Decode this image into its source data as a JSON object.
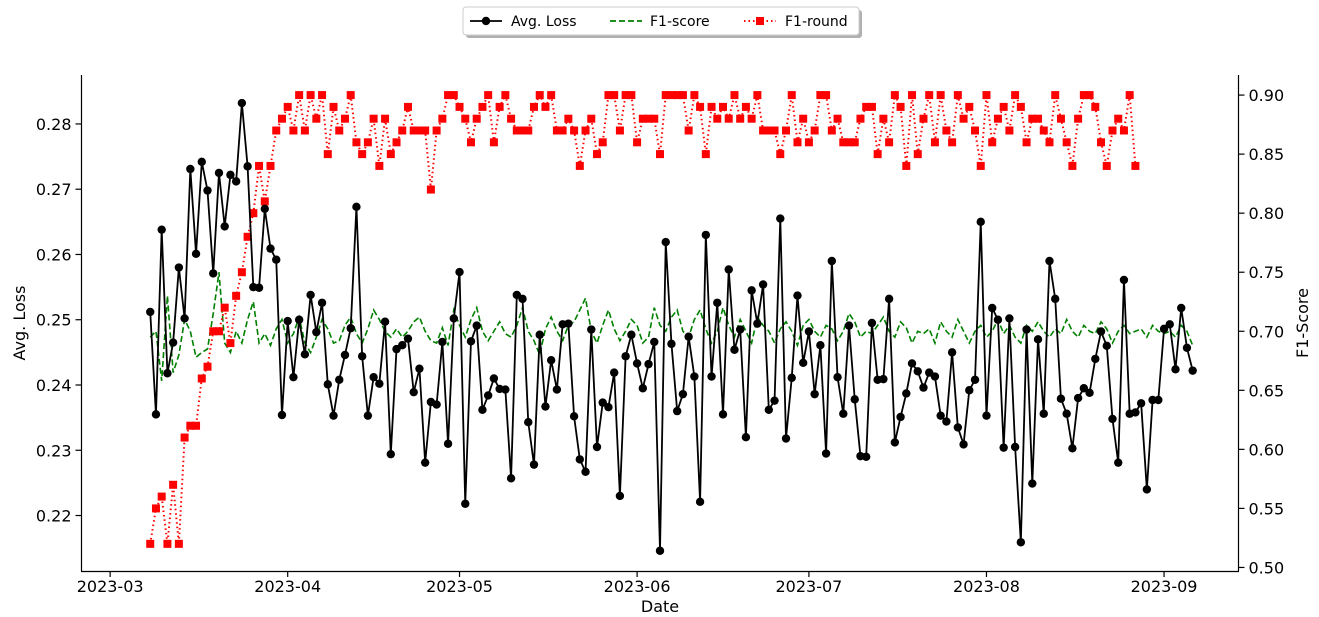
{
  "chart_data": {
    "type": "line",
    "xlabel": "Date",
    "ylabel_left": "Avg. Loss",
    "ylabel_right": "F1-Score",
    "x_tick_labels": [
      "2023-03",
      "2023-04",
      "2023-05",
      "2023-06",
      "2023-07",
      "2023-08",
      "2023-09"
    ],
    "x_range": [
      "2023-02-24",
      "2023-09-14"
    ],
    "x_start": "2023-03-08",
    "x_step_days": 1,
    "y_left_ticks": [
      0.22,
      0.23,
      0.24,
      0.25,
      0.26,
      0.27,
      0.28
    ],
    "y_left_range": [
      0.2115,
      0.2875
    ],
    "y_right_ticks": [
      0.5,
      0.55,
      0.6,
      0.65,
      0.7,
      0.75,
      0.8,
      0.85,
      0.9
    ],
    "y_right_range": [
      0.497,
      0.917
    ],
    "grid": false,
    "legend_placement": "top-center, above plot",
    "legend": [
      "Avg. Loss",
      "F1-score",
      "F1-round"
    ],
    "series": [
      {
        "name": "Avg. Loss",
        "axis": "left",
        "color": "#000000",
        "style": "solid line with circle markers",
        "values": [
          0.2512,
          0.2355,
          0.2638,
          0.2418,
          0.2465,
          0.258,
          0.2502,
          0.2731,
          0.2601,
          0.2742,
          0.2698,
          0.2571,
          0.2725,
          0.2643,
          0.2722,
          0.2712,
          0.2832,
          0.2735,
          0.255,
          0.2549,
          0.267,
          0.2609,
          0.2592,
          0.2354,
          0.2498,
          0.2412,
          0.25,
          0.2447,
          0.2538,
          0.2481,
          0.2526,
          0.2401,
          0.2353,
          0.2408,
          0.2446,
          0.2487,
          0.2673,
          0.2444,
          0.2353,
          0.2412,
          0.2402,
          0.2497,
          0.2294,
          0.2455,
          0.2461,
          0.2471,
          0.2389,
          0.2425,
          0.2281,
          0.2374,
          0.237,
          0.2466,
          0.231,
          0.2502,
          0.2573,
          0.2218,
          0.2467,
          0.2491,
          0.2362,
          0.2384,
          0.241,
          0.2394,
          0.2393,
          0.2257,
          0.2538,
          0.2532,
          0.2343,
          0.2278,
          0.2477,
          0.2367,
          0.2438,
          0.2393,
          0.2493,
          0.2494,
          0.2352,
          0.2286,
          0.2267,
          0.2485,
          0.2305,
          0.2373,
          0.2366,
          0.2419,
          0.223,
          0.2444,
          0.2477,
          0.2433,
          0.2395,
          0.2432,
          0.2466,
          0.2146,
          0.2619,
          0.2463,
          0.236,
          0.2386,
          0.2474,
          0.2413,
          0.2221,
          0.263,
          0.2413,
          0.2526,
          0.2355,
          0.2577,
          0.2454,
          0.2485,
          0.232,
          0.2545,
          0.2494,
          0.2554,
          0.2362,
          0.2376,
          0.2655,
          0.2318,
          0.2411,
          0.2537,
          0.2434,
          0.2482,
          0.2386,
          0.2461,
          0.2295,
          0.259,
          0.2412,
          0.2356,
          0.2491,
          0.2378,
          0.2291,
          0.229,
          0.2495,
          0.2408,
          0.2409,
          0.2532,
          0.2312,
          0.2351,
          0.2387,
          0.2433,
          0.2421,
          0.2396,
          0.2419,
          0.2413,
          0.2353,
          0.2344,
          0.245,
          0.2335,
          0.2309,
          0.2392,
          0.2408,
          0.265,
          0.2353,
          0.2518,
          0.25,
          0.2304,
          0.2502,
          0.2305,
          0.2159,
          0.2485,
          0.2249,
          0.247,
          0.2356,
          0.259,
          0.2532,
          0.2379,
          0.2356,
          0.2303,
          0.238,
          0.2395,
          0.2388,
          0.244,
          0.2482,
          0.246,
          0.2348,
          0.2281,
          0.2561,
          0.2356,
          0.2358,
          0.2372,
          0.224,
          0.2377,
          0.2377,
          0.2486,
          0.2493,
          0.2424,
          0.2518,
          0.2457,
          0.2422
        ]
      },
      {
        "name": "F1-score",
        "axis": "right",
        "color": "#008000",
        "style": "dashed line",
        "values": [
          0.695,
          0.7,
          0.658,
          0.73,
          0.665,
          0.68,
          0.71,
          0.7,
          0.678,
          0.682,
          0.685,
          0.715,
          0.75,
          0.69,
          0.682,
          0.7,
          0.69,
          0.71,
          0.725,
          0.69,
          0.698,
          0.688,
          0.702,
          0.71,
          0.69,
          0.698,
          0.712,
          0.69,
          0.682,
          0.695,
          0.71,
          0.702,
          0.69,
          0.692,
          0.705,
          0.712,
          0.698,
          0.69,
          0.702,
          0.718,
          0.71,
          0.7,
          0.695,
          0.702,
          0.695,
          0.7,
          0.708,
          0.712,
          0.7,
          0.692,
          0.69,
          0.703,
          0.688,
          0.718,
          0.705,
          0.695,
          0.71,
          0.72,
          0.7,
          0.692,
          0.7,
          0.708,
          0.698,
          0.695,
          0.705,
          0.72,
          0.7,
          0.692,
          0.68,
          0.702,
          0.712,
          0.7,
          0.692,
          0.705,
          0.708,
          0.718,
          0.728,
          0.7,
          0.69,
          0.705,
          0.718,
          0.702,
          0.692,
          0.7,
          0.71,
          0.705,
          0.69,
          0.695,
          0.72,
          0.705,
          0.7,
          0.712,
          0.718,
          0.7,
          0.695,
          0.71,
          0.718,
          0.702,
          0.69,
          0.7,
          0.72,
          0.705,
          0.695,
          0.71,
          0.7,
          0.69,
          0.712,
          0.705,
          0.7,
          0.69,
          0.702,
          0.708,
          0.7,
          0.688,
          0.705,
          0.71,
          0.7,
          0.695,
          0.705,
          0.702,
          0.692,
          0.7,
          0.715,
          0.708,
          0.695,
          0.7,
          0.698,
          0.705,
          0.712,
          0.7,
          0.695,
          0.708,
          0.703,
          0.69,
          0.7,
          0.698,
          0.702,
          0.69,
          0.708,
          0.7,
          0.695,
          0.71,
          0.7,
          0.69,
          0.7,
          0.705,
          0.695,
          0.7,
          0.71,
          0.698,
          0.705,
          0.695,
          0.69,
          0.705,
          0.7,
          0.708,
          0.7,
          0.695,
          0.702,
          0.698,
          0.71,
          0.7,
          0.695,
          0.705,
          0.7,
          0.698,
          0.708,
          0.702,
          0.69,
          0.7,
          0.705,
          0.698,
          0.7,
          0.702,
          0.695,
          0.705,
          0.7,
          0.698,
          0.7,
          0.695,
          0.705,
          0.7,
          0.688
        ]
      },
      {
        "name": "F1-round",
        "axis": "right",
        "color": "#ff0000",
        "style": "dotted line with square markers",
        "values": [
          0.52,
          0.55,
          0.56,
          0.52,
          0.57,
          0.52,
          0.61,
          0.62,
          0.62,
          0.66,
          0.67,
          0.7,
          0.7,
          0.72,
          0.69,
          0.73,
          0.75,
          0.78,
          0.8,
          0.84,
          0.81,
          0.84,
          0.87,
          0.88,
          0.89,
          0.87,
          0.9,
          0.87,
          0.9,
          0.88,
          0.9,
          0.85,
          0.89,
          0.87,
          0.88,
          0.9,
          0.86,
          0.85,
          0.86,
          0.88,
          0.84,
          0.88,
          0.85,
          0.86,
          0.87,
          0.89,
          0.87,
          0.87,
          0.87,
          0.82,
          0.87,
          0.88,
          0.9,
          0.9,
          0.89,
          0.88,
          0.86,
          0.88,
          0.89,
          0.9,
          0.86,
          0.89,
          0.9,
          0.88,
          0.87,
          0.87,
          0.87,
          0.89,
          0.9,
          0.89,
          0.9,
          0.87,
          0.87,
          0.88,
          0.87,
          0.84,
          0.87,
          0.88,
          0.85,
          0.86,
          0.9,
          0.9,
          0.87,
          0.9,
          0.9,
          0.86,
          0.88,
          0.88,
          0.88,
          0.85,
          0.9,
          0.9,
          0.9,
          0.9,
          0.87,
          0.9,
          0.89,
          0.85,
          0.89,
          0.88,
          0.89,
          0.88,
          0.9,
          0.88,
          0.89,
          0.88,
          0.9,
          0.87,
          0.87,
          0.87,
          0.85,
          0.87,
          0.9,
          0.86,
          0.88,
          0.86,
          0.87,
          0.9,
          0.9,
          0.87,
          0.88,
          0.86,
          0.86,
          0.86,
          0.88,
          0.89,
          0.89,
          0.85,
          0.88,
          0.86,
          0.9,
          0.89,
          0.84,
          0.9,
          0.85,
          0.88,
          0.9,
          0.86,
          0.9,
          0.87,
          0.86,
          0.9,
          0.88,
          0.89,
          0.87,
          0.84,
          0.9,
          0.86,
          0.88,
          0.89,
          0.87,
          0.9,
          0.89,
          0.86,
          0.88,
          0.88,
          0.87,
          0.86,
          0.9,
          0.88,
          0.86,
          0.84,
          0.88,
          0.9,
          0.9,
          0.89,
          0.86,
          0.84,
          0.87,
          0.88,
          0.87,
          0.9,
          0.84
        ]
      }
    ]
  }
}
